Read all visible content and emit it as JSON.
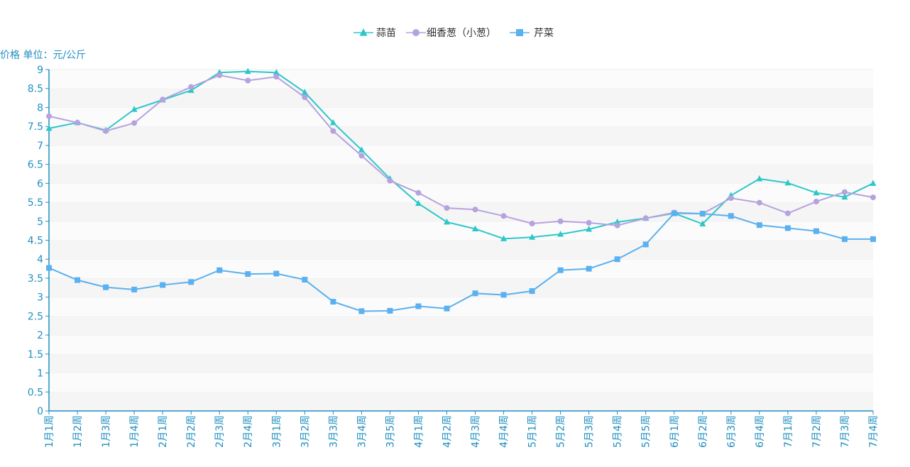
{
  "chart_data": {
    "type": "line",
    "ylabel": "价格 单位：元/公斤",
    "ylim": [
      0,
      9
    ],
    "yticks": [
      "0",
      "0.5",
      "1",
      "1.5",
      "2",
      "2.5",
      "3",
      "3.5",
      "4",
      "4.5",
      "5",
      "5.5",
      "6",
      "6.5",
      "7",
      "7.5",
      "8",
      "8.5",
      "9"
    ],
    "grid": "horizontal-bands",
    "legend_position": "top-center",
    "categories": [
      "1月1周",
      "1月2周",
      "1月3周",
      "1月4周",
      "2月1周",
      "2月2周",
      "2月3周",
      "2月4周",
      "3月1周",
      "3月2周",
      "3月3周",
      "3月4周",
      "3月5周",
      "4月1周",
      "4月2周",
      "4月3周",
      "4月4周",
      "5月1周",
      "5月2周",
      "5月3周",
      "5月4周",
      "5月5周",
      "6月1周",
      "6月2周",
      "6月3周",
      "6月4周",
      "7月1周",
      "7月2周",
      "7月3周",
      "7月4周"
    ],
    "series": [
      {
        "name": "蒜苗",
        "marker": "triangle",
        "color": "#2ec7c9",
        "values": [
          7.45,
          7.6,
          7.4,
          7.95,
          8.2,
          8.45,
          8.92,
          8.95,
          8.92,
          8.4,
          7.6,
          6.88,
          6.12,
          5.47,
          4.98,
          4.8,
          4.54,
          4.58,
          4.66,
          4.79,
          4.98,
          5.08,
          5.21,
          4.93,
          5.68,
          6.12,
          6.01,
          5.75,
          5.64,
          6.0
        ]
      },
      {
        "name": "细香葱（小葱）",
        "marker": "circle",
        "color": "#b6a2de",
        "values": [
          7.77,
          7.6,
          7.38,
          7.59,
          8.21,
          8.54,
          8.85,
          8.71,
          8.81,
          8.27,
          7.38,
          6.73,
          6.07,
          5.75,
          5.35,
          5.31,
          5.14,
          4.94,
          5.0,
          4.96,
          4.89,
          5.08,
          5.23,
          5.2,
          5.61,
          5.49,
          5.21,
          5.52,
          5.77,
          5.63
        ]
      },
      {
        "name": "芹菜",
        "marker": "square",
        "color": "#5ab1ef",
        "values": [
          3.77,
          3.45,
          3.26,
          3.2,
          3.32,
          3.4,
          3.71,
          3.61,
          3.62,
          3.46,
          2.88,
          2.63,
          2.64,
          2.76,
          2.7,
          3.1,
          3.06,
          3.16,
          3.71,
          3.75,
          4.0,
          4.39,
          5.21,
          5.2,
          5.14,
          4.9,
          4.82,
          4.74,
          4.53,
          4.53
        ]
      }
    ]
  }
}
